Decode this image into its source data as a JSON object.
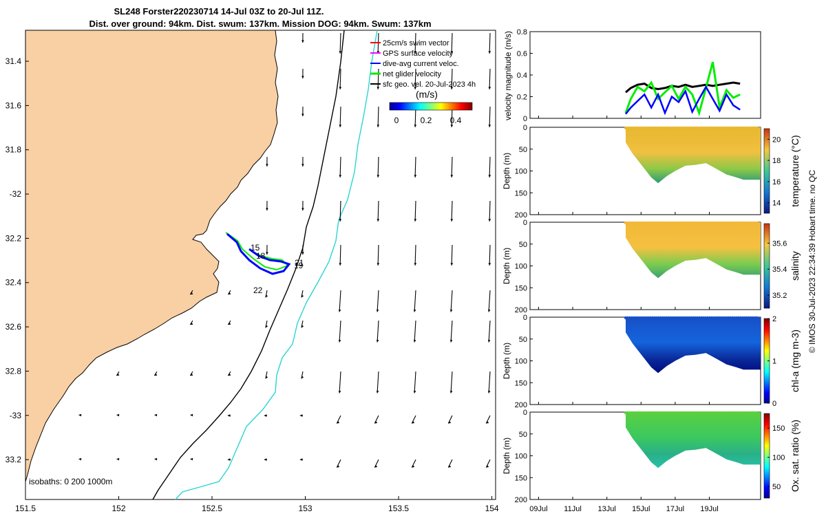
{
  "title_line1": "SL248 Forster220230714 14-Jul 03Z to 20-Jul 11Z.",
  "title_line2": "Dist. over ground: 94km. Dist. swum: 137km. Mission DOG: 94km. Swum: 137km",
  "credit": "© IMOS 30-Jul-2023 22:34:39 Hobart time. no QC",
  "colors": {
    "land": "#f9cfa4",
    "coast": "#000000",
    "isobath_200": "#000000",
    "isobath_1000": "#2ad4d4",
    "swim_vector": "#ff0000",
    "gps_velocity": "#ff00ff",
    "dive_current": "#0000ff",
    "net_glider": "#00ee00",
    "sfc_geo": "#000000"
  },
  "map": {
    "xlim": [
      151.5,
      154.02
    ],
    "ylim": [
      -33.38,
      -31.26
    ],
    "xticks": [
      151.5,
      152,
      152.5,
      153,
      153.5,
      154
    ],
    "xticklabels": [
      "151.5",
      "152",
      "152.5",
      "153",
      "153.5",
      "154"
    ],
    "yticks": [
      -31.4,
      -31.6,
      -31.8,
      -32,
      -32.2,
      -32.4,
      -32.6,
      -32.8,
      -33,
      -33.2
    ],
    "yticklabels": [
      "31.4",
      "31.6",
      "31.8",
      "-32",
      "32.2",
      "32.4",
      "32.6",
      "32.8",
      "-33",
      "33.2"
    ],
    "isobaths_label": "isobaths: 0   200  1000m",
    "legend": {
      "items": [
        "25cm/s swim vector",
        "GPS surface velocity",
        "dive-avg current veloc.",
        "net glider velocity",
        "sfc geo. vel. 20-Jul-2023 4h"
      ],
      "colorbar_label": "(m/s)",
      "colorbar_ticks": [
        "0",
        "0.2",
        "0.4"
      ]
    },
    "track_labels": [
      "15",
      "18",
      "21",
      "19",
      "22"
    ]
  },
  "chart_data": [
    {
      "type": "line",
      "name": "velocity",
      "ylabel": "velocity magnitude (m/s)",
      "ylim": [
        0,
        0.8
      ],
      "yticklabels": [
        "0",
        "0.2",
        "0.4",
        "0.6",
        "0.8"
      ],
      "xlim_days": [
        8.5,
        22.0
      ],
      "series_t": [
        14.1,
        14.4,
        14.8,
        15.2,
        15.6,
        16.0,
        16.4,
        16.8,
        17.2,
        17.6,
        18.0,
        18.4,
        18.8,
        19.2,
        19.6,
        20.0,
        20.4,
        20.8
      ],
      "sfc_geo": [
        0.24,
        0.28,
        0.31,
        0.32,
        0.28,
        0.27,
        0.28,
        0.3,
        0.29,
        0.31,
        0.29,
        0.3,
        0.31,
        0.3,
        0.31,
        0.32,
        0.33,
        0.32
      ],
      "net_glider": [
        0.05,
        0.18,
        0.29,
        0.25,
        0.33,
        0.18,
        0.24,
        0.3,
        0.18,
        0.29,
        0.22,
        0.05,
        0.28,
        0.52,
        0.1,
        0.26,
        0.19,
        0.22
      ],
      "dive_current": [
        0.04,
        0.1,
        0.16,
        0.22,
        0.1,
        0.22,
        0.05,
        0.2,
        0.15,
        0.25,
        0.06,
        0.18,
        0.29,
        0.18,
        0.07,
        0.22,
        0.12,
        0.08
      ]
    },
    {
      "type": "heatmap",
      "name": "temperature",
      "ylabel": "Depth (m)",
      "cbar_label": "temperature (°C)",
      "cbar_ticks": [
        "14",
        "16",
        "18",
        "20"
      ],
      "cbar_range": [
        13,
        21
      ],
      "ylim": [
        0,
        200
      ],
      "yticklabels": [
        "0",
        "50",
        "100",
        "150",
        "200"
      ]
    },
    {
      "type": "heatmap",
      "name": "salinity",
      "ylabel": "Depth (m)",
      "cbar_label": "salinity",
      "cbar_ticks": [
        "35.2",
        "35.4",
        "35.6"
      ],
      "cbar_range": [
        35.1,
        35.75
      ],
      "ylim": [
        0,
        200
      ],
      "yticklabels": [
        "0",
        "50",
        "100",
        "150",
        "200"
      ]
    },
    {
      "type": "heatmap",
      "name": "chl-a",
      "ylabel": "Depth (m)",
      "cbar_label": "chl-a (mg m-3)",
      "cbar_ticks": [
        "0",
        "1",
        "2"
      ],
      "cbar_range": [
        0,
        2
      ],
      "ylim": [
        0,
        200
      ],
      "yticklabels": [
        "0",
        "50",
        "100",
        "150",
        "200"
      ]
    },
    {
      "type": "heatmap",
      "name": "oxygen",
      "ylabel": "Depth (m)",
      "cbar_label": "Ox. sat. ratio (%)",
      "cbar_ticks": [
        "50",
        "100",
        "150"
      ],
      "cbar_range": [
        30,
        175
      ],
      "ylim": [
        0,
        200
      ],
      "yticklabels": [
        "0",
        "50",
        "100",
        "150",
        "200"
      ]
    }
  ],
  "time_axis": {
    "ticks_days": [
      9,
      11,
      13,
      15,
      17,
      19
    ],
    "labels": [
      "09Jul",
      "11Jul",
      "13Jul",
      "15Jul",
      "17Jul",
      "19Jul"
    ]
  }
}
